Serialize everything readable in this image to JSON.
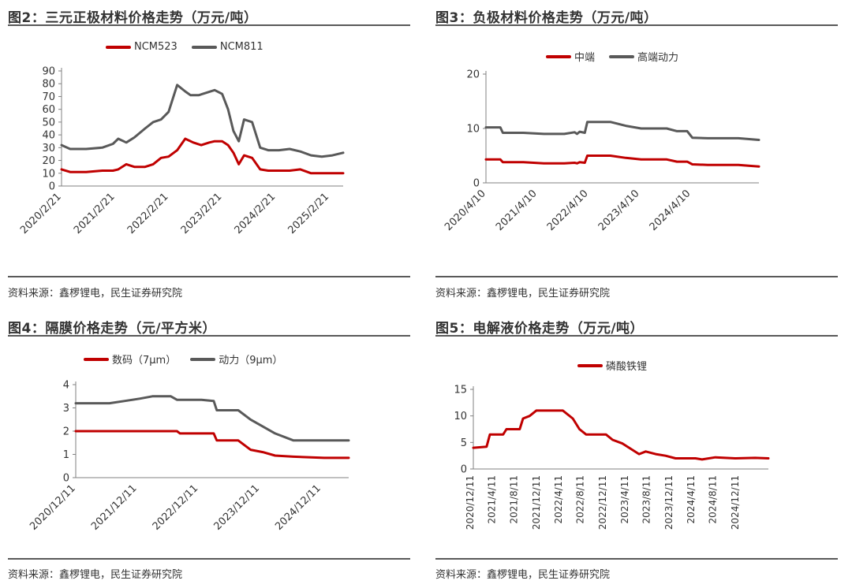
{
  "panels": [
    {
      "title": "图2：三元正极材料价格走势（万元/吨）",
      "source": "资料来源：鑫椤锂电，民生证券研究院"
    },
    {
      "title": "图3：负极材料价格走势（万元/吨）",
      "source": "资料来源：鑫椤锂电，民生证券研究院"
    },
    {
      "title": "图4：隔膜价格走势（元/平方米）",
      "source": "资料来源：鑫椤锂电，民生证券研究院"
    },
    {
      "title": "图5：电解液价格走势（万元/吨）",
      "source": "资料来源：鑫椤锂电，民生证券研究院"
    }
  ],
  "colors": {
    "red": "#c00000",
    "gray": "#595959",
    "axis": "#808080"
  },
  "chart_data": [
    {
      "type": "line",
      "title": "",
      "ylim": [
        0,
        90
      ],
      "yticks": [
        0,
        10,
        20,
        30,
        40,
        50,
        60,
        70,
        80,
        90
      ],
      "xlim": [
        2020.14,
        2025.4
      ],
      "xtick_labels": [
        "2020/2/21",
        "2021/2/21",
        "2022/2/21",
        "2023/2/21",
        "2024/2/21",
        "2025/2/21"
      ],
      "xtick_positions": [
        2020.14,
        2021.14,
        2022.14,
        2023.14,
        2024.14,
        2025.14
      ],
      "legend_position": "top-center",
      "series": [
        {
          "name": "NCM523",
          "color": "#c00000",
          "x": [
            2020.14,
            2020.3,
            2020.6,
            2020.9,
            2021.1,
            2021.2,
            2021.35,
            2021.5,
            2021.7,
            2021.85,
            2022.0,
            2022.14,
            2022.3,
            2022.45,
            2022.6,
            2022.75,
            2022.9,
            2023.0,
            2023.14,
            2023.25,
            2023.35,
            2023.45,
            2023.55,
            2023.7,
            2023.85,
            2024.0,
            2024.2,
            2024.4,
            2024.6,
            2024.8,
            2025.0,
            2025.2,
            2025.4
          ],
          "y": [
            13,
            11,
            11,
            12,
            12,
            13,
            17,
            15,
            15,
            17,
            22,
            23,
            28,
            37,
            34,
            32,
            34,
            35,
            35,
            32,
            26,
            17,
            24,
            22,
            13,
            12,
            12,
            12,
            13,
            10,
            10,
            10,
            10
          ]
        },
        {
          "name": "NCM811",
          "color": "#595959",
          "x": [
            2020.14,
            2020.3,
            2020.6,
            2020.9,
            2021.1,
            2021.2,
            2021.35,
            2021.5,
            2021.7,
            2021.85,
            2022.0,
            2022.14,
            2022.3,
            2022.45,
            2022.55,
            2022.7,
            2022.85,
            2023.0,
            2023.14,
            2023.25,
            2023.35,
            2023.45,
            2023.55,
            2023.7,
            2023.85,
            2024.0,
            2024.2,
            2024.4,
            2024.6,
            2024.8,
            2025.0,
            2025.2,
            2025.4
          ],
          "y": [
            32,
            29,
            29,
            30,
            33,
            37,
            34,
            38,
            45,
            50,
            52,
            58,
            79,
            74,
            71,
            71,
            73,
            75,
            72,
            60,
            43,
            35,
            52,
            50,
            30,
            28,
            28,
            29,
            27,
            24,
            23,
            24,
            26
          ]
        }
      ]
    },
    {
      "type": "line",
      "title": "",
      "ylim": [
        0,
        20
      ],
      "yticks": [
        0,
        10,
        20
      ],
      "xlim": [
        2020.27,
        2025.6
      ],
      "xtick_labels": [
        "2020/4/10",
        "2021/4/10",
        "2022/4/10",
        "2023/4/10",
        "2024/4/10"
      ],
      "xtick_positions": [
        2020.27,
        2021.27,
        2022.27,
        2023.27,
        2024.27
      ],
      "legend_position": "top-center",
      "series": [
        {
          "name": "中端",
          "color": "#c00000",
          "x": [
            2020.27,
            2020.55,
            2020.6,
            2021.0,
            2021.4,
            2021.8,
            2022.0,
            2022.05,
            2022.1,
            2022.2,
            2022.25,
            2022.7,
            2023.0,
            2023.3,
            2023.5,
            2023.8,
            2024.0,
            2024.2,
            2024.3,
            2024.6,
            2024.9,
            2025.2,
            2025.6
          ],
          "y": [
            4.3,
            4.3,
            3.8,
            3.8,
            3.6,
            3.6,
            3.7,
            3.6,
            3.8,
            3.7,
            5.0,
            5.0,
            4.6,
            4.3,
            4.3,
            4.3,
            3.9,
            3.9,
            3.4,
            3.3,
            3.3,
            3.3,
            3.0
          ]
        },
        {
          "name": "高端动力",
          "color": "#595959",
          "x": [
            2020.27,
            2020.55,
            2020.6,
            2021.0,
            2021.4,
            2021.8,
            2022.0,
            2022.05,
            2022.1,
            2022.2,
            2022.25,
            2022.7,
            2023.0,
            2023.3,
            2023.5,
            2023.8,
            2024.0,
            2024.2,
            2024.3,
            2024.6,
            2024.9,
            2025.2,
            2025.6
          ],
          "y": [
            10.2,
            10.2,
            9.2,
            9.2,
            9.0,
            9.0,
            9.3,
            9.0,
            9.4,
            9.2,
            11.2,
            11.2,
            10.5,
            10.0,
            10.0,
            10.0,
            9.5,
            9.5,
            8.3,
            8.2,
            8.2,
            8.2,
            7.9
          ]
        }
      ]
    },
    {
      "type": "line",
      "title": "",
      "ylim": [
        0,
        4
      ],
      "yticks": [
        0,
        1,
        2,
        3,
        4
      ],
      "xlim": [
        2020.95,
        2025.4
      ],
      "xtick_labels": [
        "2020/12/11",
        "2021/12/11",
        "2022/12/11",
        "2023/12/11",
        "2024/12/11"
      ],
      "xtick_positions": [
        2020.95,
        2021.95,
        2022.95,
        2023.95,
        2024.95
      ],
      "legend_position": "top-center",
      "series": [
        {
          "name": "数码（7μm）",
          "color": "#c00000",
          "x": [
            2020.95,
            2021.5,
            2022.0,
            2022.6,
            2022.65,
            2023.0,
            2023.2,
            2023.25,
            2023.6,
            2023.8,
            2024.0,
            2024.2,
            2024.5,
            2025.0,
            2025.4
          ],
          "y": [
            2.0,
            2.0,
            2.0,
            2.0,
            1.9,
            1.9,
            1.9,
            1.6,
            1.6,
            1.2,
            1.1,
            0.95,
            0.9,
            0.85,
            0.85
          ]
        },
        {
          "name": "动力（9μm）",
          "color": "#595959",
          "x": [
            2020.95,
            2021.5,
            2021.75,
            2022.0,
            2022.2,
            2022.5,
            2022.6,
            2023.0,
            2023.2,
            2023.25,
            2023.6,
            2023.8,
            2024.0,
            2024.2,
            2024.5,
            2025.0,
            2025.4
          ],
          "y": [
            3.2,
            3.2,
            3.3,
            3.4,
            3.5,
            3.5,
            3.35,
            3.35,
            3.3,
            2.9,
            2.9,
            2.5,
            2.2,
            1.9,
            1.6,
            1.6,
            1.6
          ]
        }
      ]
    },
    {
      "type": "line",
      "title": "",
      "ylim": [
        0,
        15
      ],
      "yticks": [
        0,
        5,
        10,
        15
      ],
      "xlim": [
        2020.95,
        2025.4
      ],
      "xtick_labels": [
        "2020/12/11",
        "2021/4/11",
        "2021/8/11",
        "2021/12/11",
        "2022/4/11",
        "2022/8/11",
        "2022/12/11",
        "2023/4/11",
        "2023/8/11",
        "2023/12/11",
        "2024/4/11",
        "2024/8/11",
        "2024/12/11"
      ],
      "xtick_positions": [
        2020.95,
        2021.28,
        2021.61,
        2021.95,
        2022.28,
        2022.61,
        2022.95,
        2023.28,
        2023.61,
        2023.95,
        2024.28,
        2024.61,
        2024.95
      ],
      "legend_position": "top-center",
      "series": [
        {
          "name": "磷酸铁锂",
          "color": "#c00000",
          "x": [
            2020.95,
            2021.15,
            2021.2,
            2021.4,
            2021.45,
            2021.65,
            2021.7,
            2021.8,
            2021.9,
            2022.0,
            2022.3,
            2022.45,
            2022.55,
            2022.65,
            2022.95,
            2023.05,
            2023.2,
            2023.3,
            2023.45,
            2023.55,
            2023.7,
            2023.85,
            2024.0,
            2024.3,
            2024.4,
            2024.6,
            2024.9,
            2025.2,
            2025.4
          ],
          "y": [
            4.0,
            4.2,
            6.5,
            6.5,
            7.5,
            7.5,
            9.5,
            10.0,
            11.0,
            11.0,
            11.0,
            9.5,
            7.5,
            6.5,
            6.5,
            5.5,
            4.8,
            4.0,
            2.8,
            3.3,
            2.8,
            2.5,
            2.0,
            2.0,
            1.8,
            2.2,
            2.0,
            2.1,
            2.0
          ]
        }
      ]
    }
  ]
}
